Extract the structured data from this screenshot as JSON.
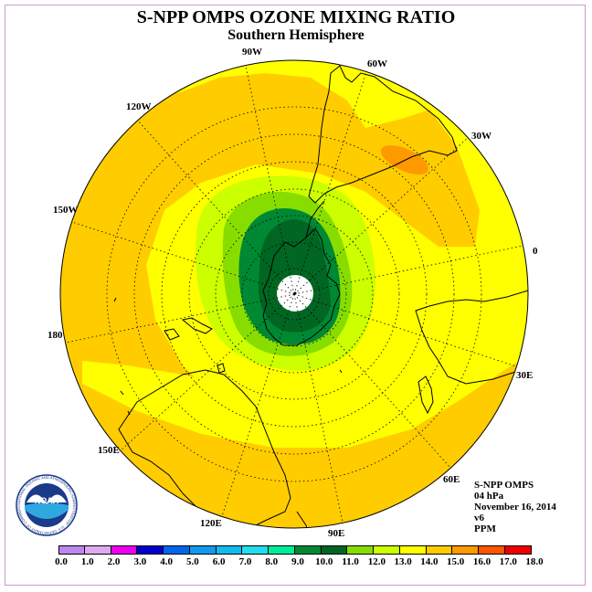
{
  "title": "S-NPP OMPS OZONE MIXING RATIO",
  "subtitle": "Southern Hemisphere",
  "longitude_labels": [
    "90W",
    "60W",
    "120W",
    "30W",
    "150W",
    "0",
    "180",
    "30E",
    "150E",
    "60E",
    "120E",
    "90E"
  ],
  "info": {
    "instrument": "S-NPP OMPS",
    "pressure": "04 hPa",
    "date": "November 16, 2014",
    "version": "v6",
    "units": "PPM"
  },
  "logo": {
    "text": "NOAA",
    "ring_text": "NATIONAL OCEANIC AND ATMOSPHERIC ADMINISTRATION · U.S. DEPARTMENT OF COMMERCE"
  },
  "colorbar": {
    "ticks": [
      "0.0",
      "1.0",
      "2.0",
      "3.0",
      "4.0",
      "5.0",
      "6.0",
      "7.0",
      "8.0",
      "9.0",
      "10.0",
      "11.0",
      "12.0",
      "13.0",
      "14.0",
      "15.0",
      "16.0",
      "17.0",
      "18.0"
    ],
    "colors": [
      "#bb88ee",
      "#ddaaee",
      "#ee00ee",
      "#0000cc",
      "#0066ee",
      "#1199ee",
      "#11bbee",
      "#22ddee",
      "#00ee99",
      "#008833",
      "#006622",
      "#88dd00",
      "#ccff00",
      "#ffff00",
      "#ffcc00",
      "#ff9900",
      "#ff5500",
      "#ee0000",
      "#884422"
    ]
  },
  "colors": {
    "yellow": "#ffff00",
    "orange": "#ffcc00",
    "dark_orange": "#ff9900",
    "lime": "#ccff00",
    "light_green": "#88dd00",
    "green": "#008833",
    "dark_green": "#006622",
    "frame": "#cc99cc"
  }
}
